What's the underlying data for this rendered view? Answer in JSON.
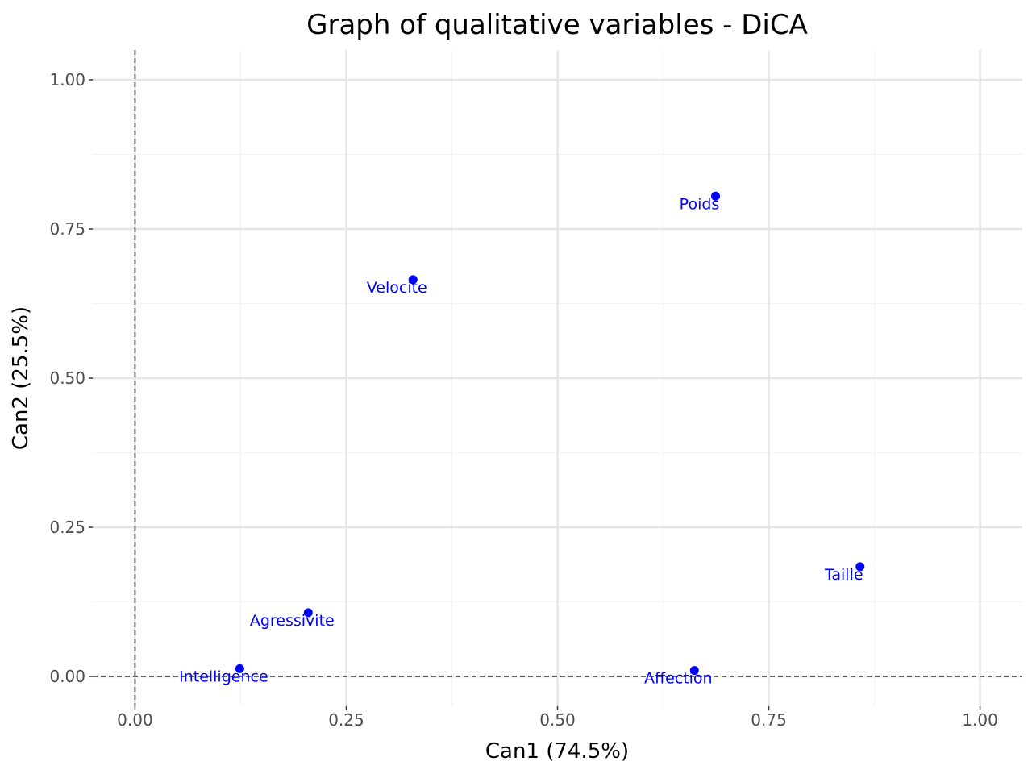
{
  "chart_data": {
    "type": "scatter",
    "title": "Graph of qualitative variables - DiCA",
    "xlabel": "Can1 (74.5%)",
    "ylabel": "Can2 (25.5%)",
    "xlim": [
      -0.05,
      1.05
    ],
    "ylim": [
      -0.05,
      1.05
    ],
    "x_ticks": [
      0.0,
      0.25,
      0.5,
      0.75,
      1.0
    ],
    "y_ticks": [
      0.0,
      0.25,
      0.5,
      0.75,
      1.0
    ],
    "x_tick_labels": [
      "0.00",
      "0.25",
      "0.50",
      "0.75",
      "1.00"
    ],
    "y_tick_labels": [
      "0.00",
      "0.25",
      "0.50",
      "0.75",
      "1.00"
    ],
    "grid": true,
    "reference_lines": {
      "x": 0,
      "y": 0
    },
    "point_color": "#0000ff",
    "points": [
      {
        "label": "Poids",
        "x": 0.687,
        "y": 0.805
      },
      {
        "label": "Velocite",
        "x": 0.329,
        "y": 0.665
      },
      {
        "label": "Taille",
        "x": 0.858,
        "y": 0.184
      },
      {
        "label": "Agressivite",
        "x": 0.205,
        "y": 0.107
      },
      {
        "label": "Intelligence",
        "x": 0.124,
        "y": 0.013
      },
      {
        "label": "Affection",
        "x": 0.662,
        "y": 0.01
      }
    ]
  }
}
